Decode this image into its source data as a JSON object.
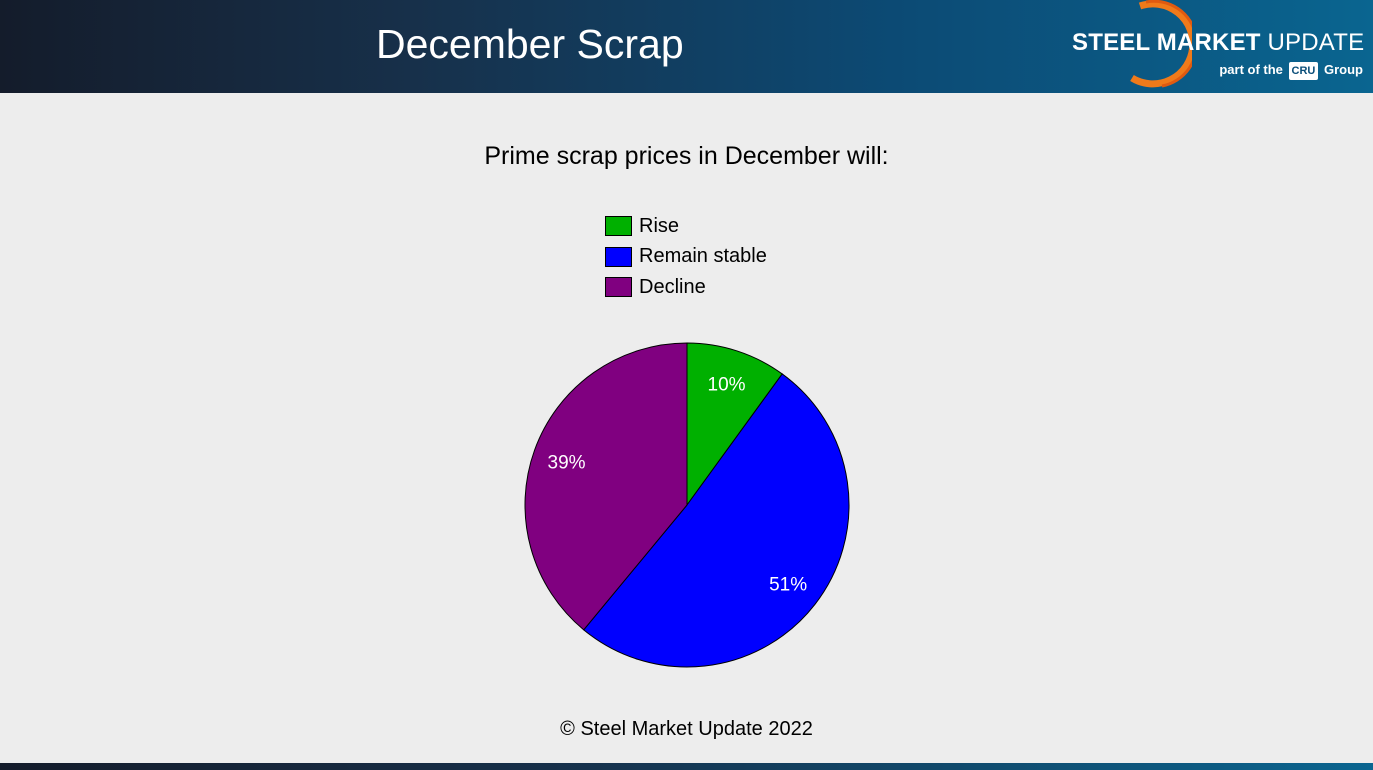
{
  "header": {
    "title": "December Scrap",
    "logo": {
      "brand_bold": "STEEL MARKET",
      "brand_light": "UPDATE",
      "sub_prefix": "part of the",
      "sub_box": "CRU",
      "sub_suffix": "Group"
    }
  },
  "chart_data": {
    "type": "pie",
    "title": "Prime scrap prices in December will:",
    "categories": [
      "Rise",
      "Remain stable",
      "Decline"
    ],
    "values": [
      10,
      51,
      39
    ],
    "labels": [
      "10%",
      "51%",
      "39%"
    ],
    "colors": [
      "#00b000",
      "#0000ff",
      "#800080"
    ],
    "legend_position": "top"
  },
  "footer": {
    "copyright": "© Steel Market Update 2022"
  }
}
